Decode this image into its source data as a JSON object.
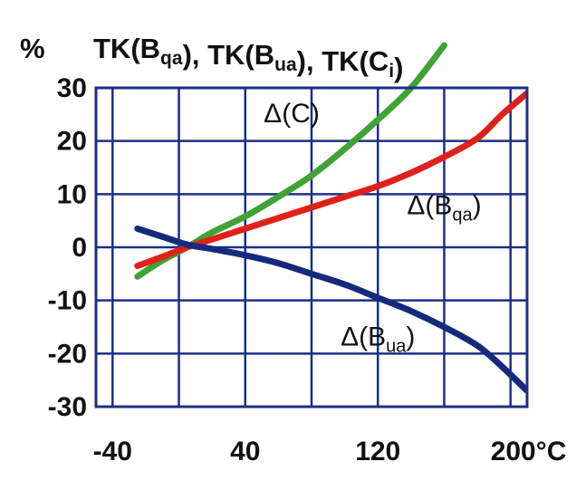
{
  "chart_data": {
    "type": "line",
    "ylabel": "%",
    "title": {
      "parts": [
        {
          "main": "TK(B",
          "sub": "qa"
        },
        {
          "main": "), TK(B",
          "sub": "ua"
        },
        {
          "main": "), TK(C",
          "sub": "i"
        },
        {
          "main": ")",
          "sub": ""
        }
      ]
    },
    "xlim": [
      -50,
      210
    ],
    "ylim": [
      -30,
      30
    ],
    "xticks": [
      {
        "value": -40,
        "label": "-40"
      },
      {
        "value": 40,
        "label": "40"
      },
      {
        "value": 120,
        "label": "120"
      },
      {
        "value": 200,
        "label": "200°C"
      }
    ],
    "yticks": [
      {
        "value": 30,
        "label": "30"
      },
      {
        "value": 20,
        "label": "20"
      },
      {
        "value": 10,
        "label": "10"
      },
      {
        "value": 0,
        "label": "0"
      },
      {
        "value": -10,
        "label": "-10"
      },
      {
        "value": -20,
        "label": "-20"
      },
      {
        "value": -30,
        "label": "-30"
      }
    ],
    "grid": true,
    "series": [
      {
        "key": "delta-c",
        "name": {
          "main": "Δ(C)",
          "sub": ""
        },
        "color": "#3fa335",
        "label_at": {
          "x": 68,
          "y": 23.5
        },
        "points": [
          [
            -25,
            -5.5
          ],
          [
            -10,
            -2.5
          ],
          [
            5,
            0
          ],
          [
            20,
            2.8
          ],
          [
            40,
            5.8
          ],
          [
            60,
            9.5
          ],
          [
            80,
            13.5
          ],
          [
            100,
            18.5
          ],
          [
            120,
            24
          ],
          [
            140,
            30
          ],
          [
            160,
            38
          ]
        ]
      },
      {
        "key": "delta-bqa",
        "name": {
          "main": "Δ(B",
          "sub": "qa"
        },
        "color": "#e0211b",
        "label_at": {
          "x": 160,
          "y": 6.2
        },
        "points": [
          [
            -25,
            -3.5
          ],
          [
            -10,
            -1.8
          ],
          [
            5,
            0
          ],
          [
            20,
            1.5
          ],
          [
            40,
            3.5
          ],
          [
            60,
            5.5
          ],
          [
            80,
            7.5
          ],
          [
            100,
            9.5
          ],
          [
            120,
            11.5
          ],
          [
            140,
            14
          ],
          [
            160,
            17
          ],
          [
            180,
            20.5
          ],
          [
            195,
            25
          ],
          [
            210,
            29
          ]
        ]
      },
      {
        "key": "delta-bua",
        "name": {
          "main": "Δ(B",
          "sub": "ua"
        },
        "color": "#152a7d",
        "label_at": {
          "x": 120,
          "y": -18.5
        },
        "points": [
          [
            -25,
            3.5
          ],
          [
            -10,
            2
          ],
          [
            5,
            0.5
          ],
          [
            20,
            -0.3
          ],
          [
            40,
            -1.5
          ],
          [
            60,
            -3
          ],
          [
            80,
            -5
          ],
          [
            100,
            -7
          ],
          [
            120,
            -9.5
          ],
          [
            140,
            -12
          ],
          [
            160,
            -15
          ],
          [
            180,
            -18.5
          ],
          [
            195,
            -22.5
          ],
          [
            210,
            -27
          ]
        ]
      }
    ]
  }
}
